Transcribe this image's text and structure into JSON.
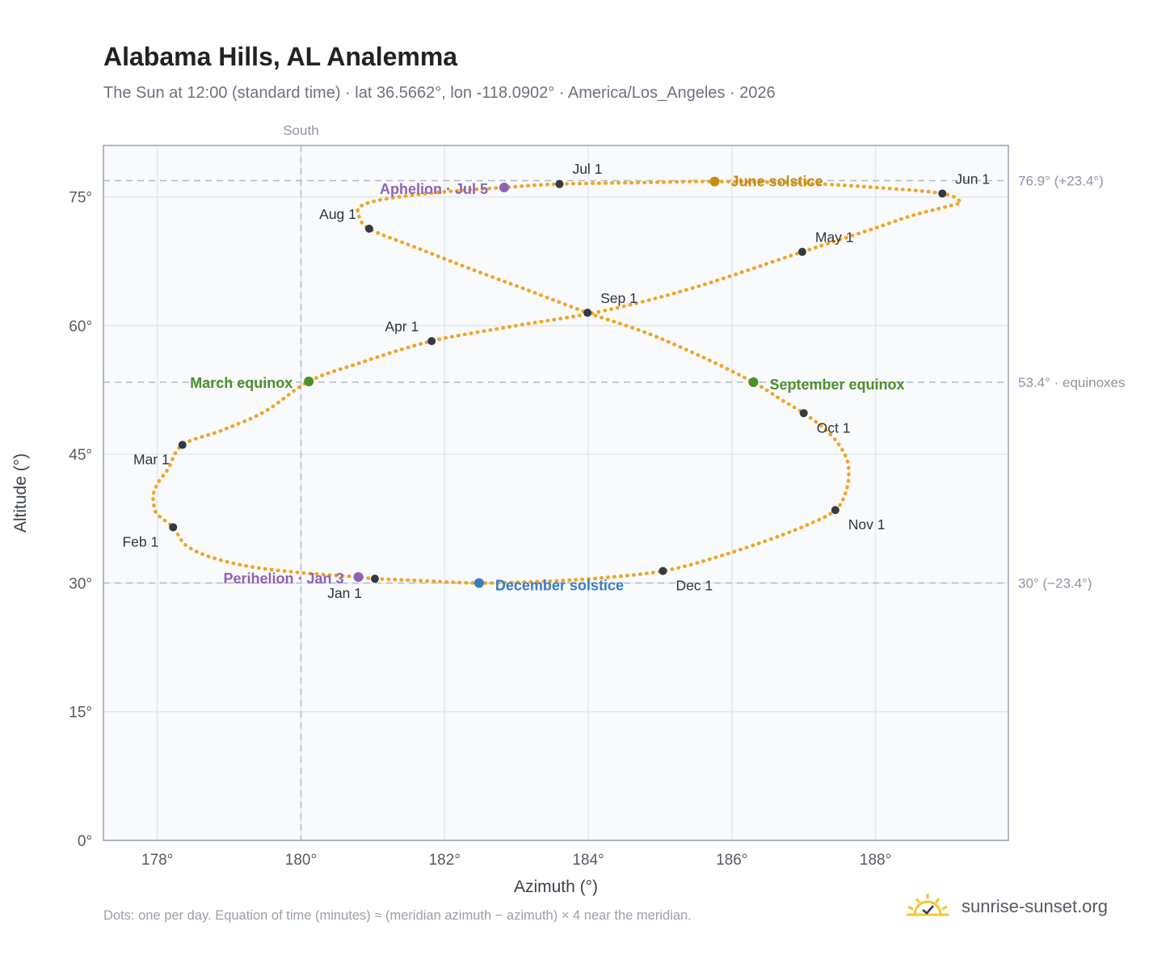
{
  "title": "Alabama Hills, AL Analemma",
  "subtitle": "The Sun at 12:00 (standard time) · lat 36.5662°, lon -118.0902° · America/Los_Angeles · 2026",
  "footnote": "Dots: one per day. Equation of time (minutes) ≈ (meridian azimuth − azimuth) × 4 near the meridian.",
  "brand": {
    "text": "sunrise-sunset.org",
    "icon": "sun-checkmark-icon"
  },
  "colors": {
    "analemma": "#f0a526",
    "month_marker": "#333a44",
    "june_solstice": "#c98a10",
    "december_solstice": "#3a7cc4",
    "equinox": "#4e8f2a",
    "apsis": "#8f63b3",
    "reference_line": "#b0bcc8",
    "plot_background": "#f8fafc",
    "grid": "#e2e8ef",
    "axis_text": "#555b63",
    "brand_sun": "#f4c430"
  },
  "chart_data": {
    "type": "scatter",
    "xlabel": "Azimuth (°)",
    "ylabel": "Altitude (°)",
    "xlim": [
      177.25,
      189.85
    ],
    "ylim": [
      0,
      81
    ],
    "x_ticks": [
      178,
      180,
      182,
      184,
      186,
      188
    ],
    "x_tick_labels": [
      "178°",
      "180°",
      "182°",
      "184°",
      "186°",
      "188°"
    ],
    "y_ticks": [
      0,
      15,
      30,
      45,
      60,
      75
    ],
    "y_tick_labels": [
      "0°",
      "15°",
      "30°",
      "45°",
      "60°",
      "75°"
    ],
    "grid": true,
    "meridian": {
      "azimuth": 180,
      "label": "South"
    },
    "reference_lines": [
      {
        "altitude": 76.9,
        "label": "76.9° (+23.4°)"
      },
      {
        "altitude": 53.4,
        "label": "53.4° · equinoxes"
      },
      {
        "altitude": 30.0,
        "label": "30° (−23.4°)"
      }
    ],
    "month_points": [
      {
        "label": "Jan 1",
        "azimuth": 181.03,
        "altitude": 30.5
      },
      {
        "label": "Feb 1",
        "azimuth": 178.22,
        "altitude": 36.5
      },
      {
        "label": "Mar 1",
        "azimuth": 178.35,
        "altitude": 46.1
      },
      {
        "label": "Apr 1",
        "azimuth": 181.82,
        "altitude": 58.2
      },
      {
        "label": "May 1",
        "azimuth": 186.98,
        "altitude": 68.6
      },
      {
        "label": "Jun 1",
        "azimuth": 188.93,
        "altitude": 75.4
      },
      {
        "label": "Jul 1",
        "azimuth": 183.6,
        "altitude": 76.5
      },
      {
        "label": "Aug 1",
        "azimuth": 180.95,
        "altitude": 71.3
      },
      {
        "label": "Sep 1",
        "azimuth": 183.99,
        "altitude": 61.5
      },
      {
        "label": "Oct 1",
        "azimuth": 187.0,
        "altitude": 49.8
      },
      {
        "label": "Nov 1",
        "azimuth": 187.44,
        "altitude": 38.5
      },
      {
        "label": "Dec 1",
        "azimuth": 185.04,
        "altitude": 31.4
      }
    ],
    "events": [
      {
        "label": "Perihelion · Jan 3",
        "azimuth": 180.8,
        "altitude": 30.7,
        "kind": "apsis"
      },
      {
        "label": "March equinox",
        "azimuth": 180.11,
        "altitude": 53.5,
        "kind": "equinox"
      },
      {
        "label": "June solstice",
        "azimuth": 185.76,
        "altitude": 76.8,
        "kind": "june_solstice"
      },
      {
        "label": "Aphelion · Jul 5",
        "azimuth": 182.83,
        "altitude": 76.1,
        "kind": "apsis"
      },
      {
        "label": "September equinox",
        "azimuth": 186.3,
        "altitude": 53.4,
        "kind": "equinox"
      },
      {
        "label": "December solstice",
        "azimuth": 182.48,
        "altitude": 30.0,
        "kind": "december_solstice"
      }
    ],
    "analemma_points": [
      [
        181.03,
        30.5
      ],
      [
        180.8,
        30.7
      ],
      [
        180.0,
        31.2
      ],
      [
        179.3,
        31.9
      ],
      [
        178.75,
        33.0
      ],
      [
        178.4,
        34.4
      ],
      [
        178.22,
        36.5
      ],
      [
        178.0,
        38.0
      ],
      [
        177.95,
        39.2
      ],
      [
        177.95,
        40.5
      ],
      [
        178.02,
        41.8
      ],
      [
        178.15,
        43.3
      ],
      [
        178.35,
        46.1
      ],
      [
        178.9,
        47.8
      ],
      [
        179.5,
        50.0
      ],
      [
        180.11,
        53.5
      ],
      [
        180.8,
        55.6
      ],
      [
        181.82,
        58.2
      ],
      [
        183.0,
        60.0
      ],
      [
        184.2,
        61.7
      ],
      [
        185.5,
        64.5
      ],
      [
        186.98,
        68.6
      ],
      [
        187.9,
        71.1
      ],
      [
        188.5,
        72.8
      ],
      [
        189.05,
        74.0
      ],
      [
        189.18,
        74.4
      ],
      [
        188.93,
        75.4
      ],
      [
        188.0,
        76.1
      ],
      [
        187.0,
        76.6
      ],
      [
        185.76,
        76.8
      ],
      [
        184.9,
        76.7
      ],
      [
        183.6,
        76.5
      ],
      [
        182.83,
        76.1
      ],
      [
        182.0,
        75.6
      ],
      [
        181.2,
        74.8
      ],
      [
        180.85,
        74.0
      ],
      [
        180.8,
        73.0
      ],
      [
        180.95,
        71.3
      ],
      [
        181.6,
        69.1
      ],
      [
        182.4,
        66.5
      ],
      [
        183.2,
        64.0
      ],
      [
        183.99,
        61.5
      ],
      [
        184.8,
        59.2
      ],
      [
        185.6,
        56.3
      ],
      [
        186.3,
        53.4
      ],
      [
        186.7,
        51.3
      ],
      [
        187.0,
        49.8
      ],
      [
        187.3,
        47.9
      ],
      [
        187.5,
        46.0
      ],
      [
        187.62,
        43.8
      ],
      [
        187.6,
        41.0
      ],
      [
        187.44,
        38.5
      ],
      [
        187.0,
        36.6
      ],
      [
        186.4,
        34.7
      ],
      [
        185.7,
        32.8
      ],
      [
        185.04,
        31.4
      ],
      [
        184.2,
        30.6
      ],
      [
        183.4,
        30.2
      ],
      [
        182.48,
        30.0
      ],
      [
        181.6,
        30.3
      ],
      [
        181.03,
        30.5
      ]
    ]
  }
}
